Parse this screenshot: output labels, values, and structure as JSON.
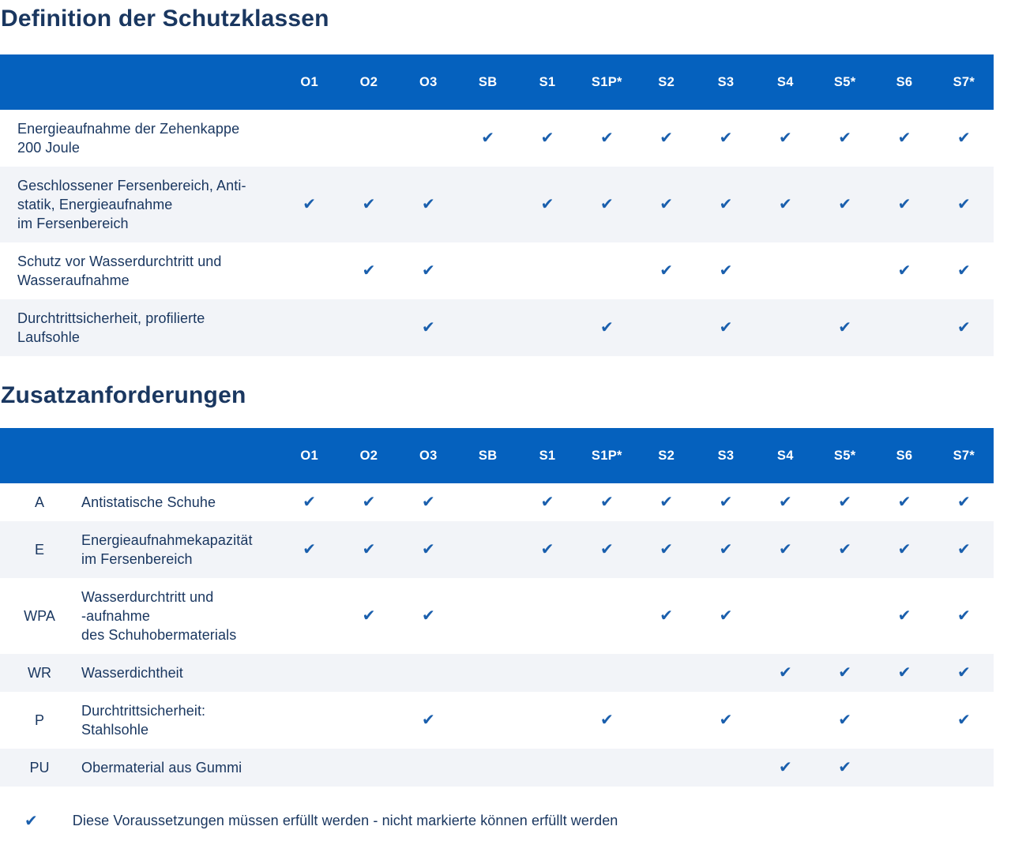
{
  "colors": {
    "header_bg": "#0561BE",
    "check": "#1A5FAD",
    "text": "#1A3760",
    "row_alt": "#F2F4F8"
  },
  "check_glyph": "✔",
  "columns": [
    "O1",
    "O2",
    "O3",
    "SB",
    "S1",
    "S1P*",
    "S2",
    "S3",
    "S4",
    "S5*",
    "S6",
    "S7*"
  ],
  "section1": {
    "title": "Definition der Schutzklassen",
    "rows": [
      {
        "label": "Energieaufnahme der Zehenkappe\n200 Joule",
        "checks": [
          0,
          0,
          0,
          1,
          1,
          1,
          1,
          1,
          1,
          1,
          1,
          1
        ]
      },
      {
        "label": "Geschlossener Fersenbereich, Anti-\nstatik, Energieaufnahme\nim Fersenbereich",
        "checks": [
          1,
          1,
          1,
          0,
          1,
          1,
          1,
          1,
          1,
          1,
          1,
          1
        ]
      },
      {
        "label": "Schutz vor Wasserdurchtritt und\nWasseraufnahme",
        "checks": [
          0,
          1,
          1,
          0,
          0,
          0,
          1,
          1,
          0,
          0,
          1,
          1
        ]
      },
      {
        "label": "Durchtrittsicherheit, profilierte\nLaufsohle",
        "checks": [
          0,
          0,
          1,
          0,
          0,
          1,
          0,
          1,
          0,
          1,
          0,
          1
        ]
      }
    ]
  },
  "section2": {
    "title": "Zusatzanforderungen",
    "rows": [
      {
        "code": "A",
        "label": "Antistatische Schuhe",
        "checks": [
          1,
          1,
          1,
          0,
          1,
          1,
          1,
          1,
          1,
          1,
          1,
          1
        ]
      },
      {
        "code": "E",
        "label": "Energieaufnahmekapazität\nim Fersenbereich",
        "checks": [
          1,
          1,
          1,
          0,
          1,
          1,
          1,
          1,
          1,
          1,
          1,
          1
        ]
      },
      {
        "code": "WPA",
        "label": "Wasserdurchtritt und\n-aufnahme\ndes Schuhobermaterials",
        "checks": [
          0,
          1,
          1,
          0,
          0,
          0,
          1,
          1,
          0,
          0,
          1,
          1
        ]
      },
      {
        "code": "WR",
        "label": "Wasserdichtheit",
        "checks": [
          0,
          0,
          0,
          0,
          0,
          0,
          0,
          0,
          1,
          1,
          1,
          1
        ]
      },
      {
        "code": "P",
        "label": "Durchtrittsicherheit:\nStahlsohle",
        "checks": [
          0,
          0,
          1,
          0,
          0,
          1,
          0,
          1,
          0,
          1,
          0,
          1
        ]
      },
      {
        "code": "PU",
        "label": "Obermaterial aus Gummi",
        "checks": [
          0,
          0,
          0,
          0,
          0,
          0,
          0,
          0,
          1,
          1,
          0,
          0
        ]
      }
    ]
  },
  "legend": {
    "text": "Diese Voraussetzungen müssen erfüllt werden - nicht markierte können erfüllt werden"
  }
}
